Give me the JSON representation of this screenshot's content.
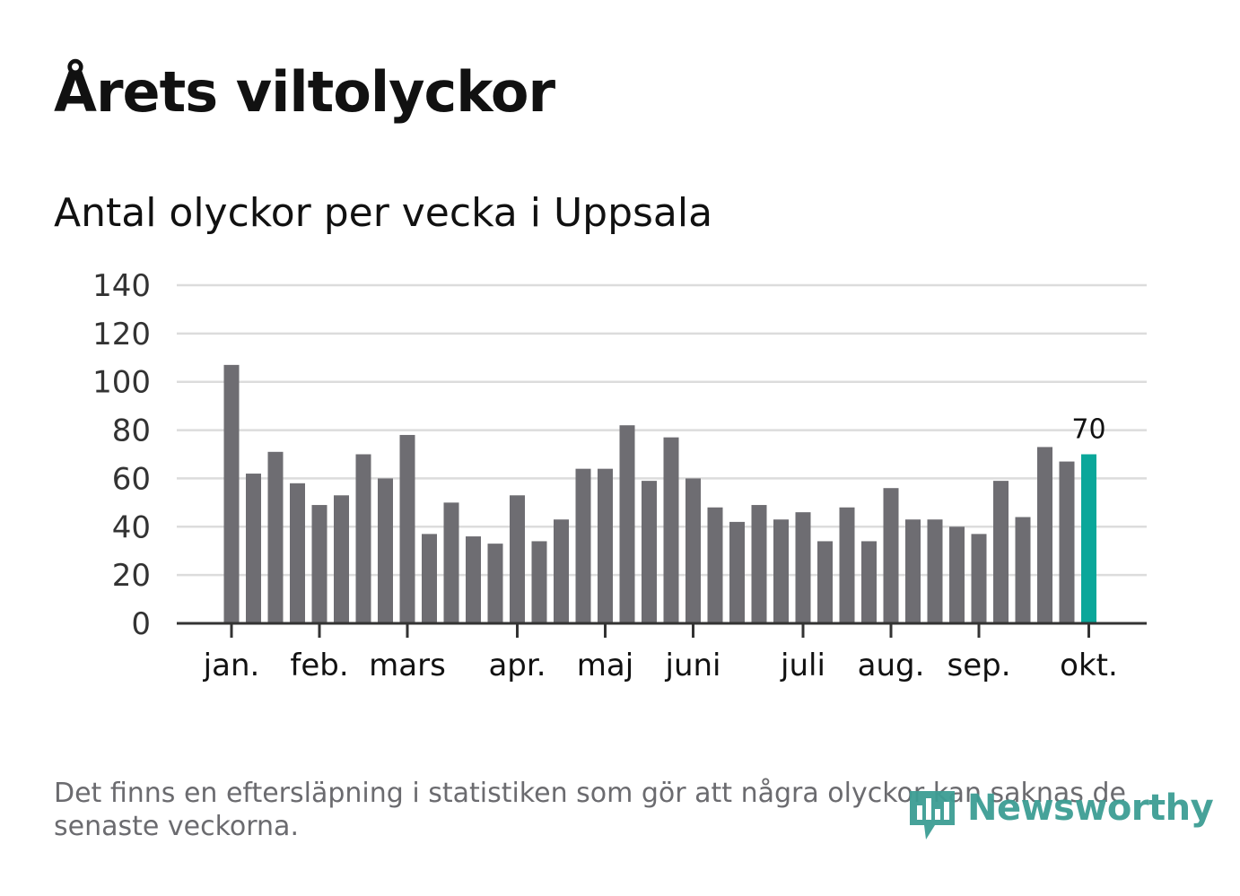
{
  "title": "Årets viltolyckor",
  "subtitle": "Antal olyckor per vecka i Uppsala",
  "footnote": "Det finns en eftersläpning i statistiken som gör att några olyckor kan saknas de senaste veckorna.",
  "logo": {
    "text": "Newsworthy",
    "icon": "newsworthy-logo-icon"
  },
  "colors": {
    "bar": "#6e6d72",
    "highlight": "#0aa79a",
    "grid": "#dcdcdc",
    "axis": "#333333",
    "text": "#111111"
  },
  "chart_data": {
    "type": "bar",
    "title": "Antal olyckor per vecka i Uppsala",
    "xlabel": "",
    "ylabel": "",
    "ylim": [
      0,
      140
    ],
    "yticks": [
      0,
      20,
      40,
      60,
      80,
      100,
      120,
      140
    ],
    "grid": true,
    "values": [
      107,
      62,
      71,
      58,
      49,
      53,
      70,
      60,
      78,
      37,
      50,
      36,
      33,
      53,
      34,
      43,
      64,
      64,
      82,
      59,
      77,
      60,
      48,
      42,
      49,
      43,
      46,
      34,
      48,
      34,
      56,
      43,
      43,
      40,
      37,
      59,
      44,
      73,
      67,
      70
    ],
    "month_labels": [
      {
        "label": "jan.",
        "week_index": 0
      },
      {
        "label": "feb.",
        "week_index": 4
      },
      {
        "label": "mars",
        "week_index": 8
      },
      {
        "label": "apr.",
        "week_index": 13
      },
      {
        "label": "maj",
        "week_index": 17
      },
      {
        "label": "juni",
        "week_index": 21
      },
      {
        "label": "juli",
        "week_index": 26
      },
      {
        "label": "aug.",
        "week_index": 30
      },
      {
        "label": "sep.",
        "week_index": 34
      },
      {
        "label": "okt.",
        "week_index": 39
      }
    ],
    "highlight": {
      "week_index": 39,
      "value": 70,
      "label": "70"
    }
  }
}
